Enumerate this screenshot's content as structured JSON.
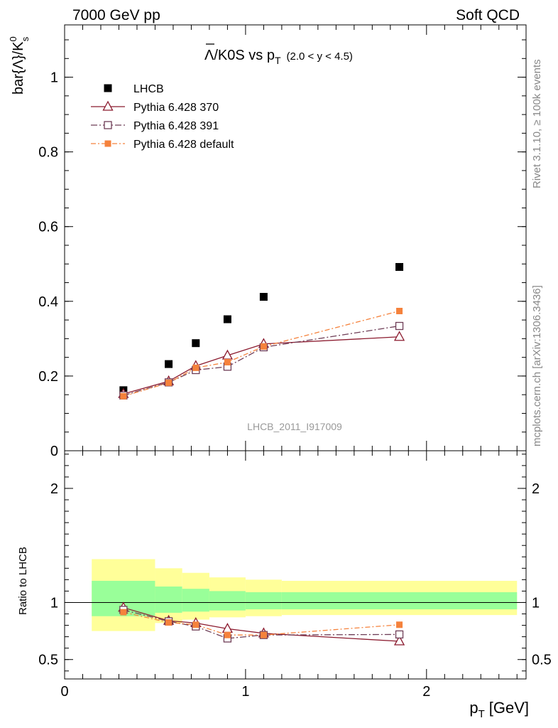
{
  "header": {
    "left_label": "7000 GeV pp",
    "right_label": "Soft QCD"
  },
  "side_labels": {
    "rivet": "Rivet 3.1.10, ≥ 100k events",
    "mcplots": "mcplots.cern.ch [arXiv:1306.3436]"
  },
  "watermark": "LHCB_2011_I917009",
  "colors": {
    "lhcb": "#000000",
    "p370": "#8b1a2e",
    "p391": "#6e3d56",
    "pdef": "#f5823c",
    "band_inner": "#99ff99",
    "band_outer": "#ffff99"
  },
  "chart_data": [
    {
      "type": "scatter",
      "panel": "main",
      "title_main": "Λ/K0S vs p",
      "title_sub": "T",
      "title_range": "(2.0 < y < 4.5)",
      "ylabel": "bar{Λ}/K",
      "ylabel_sup": "0",
      "ylabel_sub": "s",
      "xlim": [
        0,
        2.55
      ],
      "ylim": [
        0,
        1.14
      ],
      "yticks": [
        0,
        0.2,
        0.4,
        0.6,
        0.8,
        1
      ],
      "ytick_labels": [
        "0",
        "0.2",
        "0.4",
        "0.6",
        "0.8",
        "1"
      ],
      "series": [
        {
          "name": "LHCB",
          "style": "data",
          "x": [
            0.325,
            0.575,
            0.725,
            0.9,
            1.1,
            1.85
          ],
          "y": [
            0.162,
            0.232,
            0.288,
            0.352,
            0.412,
            0.492
          ]
        },
        {
          "name": "Pythia 6.428 370",
          "style": "triangle",
          "x": [
            0.325,
            0.575,
            0.725,
            0.9,
            1.1,
            1.85
          ],
          "y": [
            0.152,
            0.186,
            0.227,
            0.255,
            0.286,
            0.305
          ]
        },
        {
          "name": "Pythia 6.428 391",
          "style": "square-open",
          "x": [
            0.325,
            0.575,
            0.725,
            0.9,
            1.1,
            1.85
          ],
          "y": [
            0.148,
            0.183,
            0.216,
            0.225,
            0.277,
            0.334
          ]
        },
        {
          "name": "Pythia 6.428 default",
          "style": "square-filled",
          "x": [
            0.325,
            0.575,
            0.725,
            0.9,
            1.1,
            1.85
          ],
          "y": [
            0.146,
            0.182,
            0.222,
            0.237,
            0.279,
            0.374
          ]
        }
      ]
    },
    {
      "type": "scatter",
      "panel": "ratio",
      "ylabel": "Ratio to LHCB",
      "xlabel": "p",
      "xlabel_sub": "T",
      "xlabel_unit": "[GeV]",
      "xlim": [
        0,
        2.55
      ],
      "ylim": [
        0.33,
        2.33
      ],
      "xticks": [
        0,
        1,
        2
      ],
      "xtick_labels": [
        "0",
        "1",
        "2"
      ],
      "yticks": [
        0.5,
        1,
        2
      ],
      "ytick_labels": [
        "0.5",
        "1",
        "2"
      ],
      "bands": [
        {
          "x0": 0.15,
          "x1": 0.5,
          "outer": [
            0.75,
            1.38
          ],
          "inner": [
            0.88,
            1.19
          ]
        },
        {
          "x0": 0.5,
          "x1": 0.65,
          "outer": [
            0.82,
            1.3
          ],
          "inner": [
            0.91,
            1.14
          ]
        },
        {
          "x0": 0.65,
          "x1": 0.8,
          "outer": [
            0.85,
            1.26
          ],
          "inner": [
            0.92,
            1.12
          ]
        },
        {
          "x0": 0.8,
          "x1": 1.0,
          "outer": [
            0.87,
            1.22
          ],
          "inner": [
            0.93,
            1.1
          ]
        },
        {
          "x0": 1.0,
          "x1": 1.2,
          "outer": [
            0.88,
            1.2
          ],
          "inner": [
            0.94,
            1.09
          ]
        },
        {
          "x0": 1.2,
          "x1": 2.5,
          "outer": [
            0.89,
            1.19
          ],
          "inner": [
            0.94,
            1.09
          ]
        }
      ],
      "series": [
        {
          "name": "Pythia 6.428 370",
          "style": "triangle",
          "x": [
            0.325,
            0.575,
            0.725,
            0.9,
            1.1,
            1.85
          ],
          "y": [
            0.955,
            0.84,
            0.82,
            0.77,
            0.73,
            0.66
          ]
        },
        {
          "name": "Pythia 6.428 391",
          "style": "square-open",
          "x": [
            0.325,
            0.575,
            0.725,
            0.9,
            1.1,
            1.85
          ],
          "y": [
            0.935,
            0.835,
            0.79,
            0.685,
            0.715,
            0.72
          ]
        },
        {
          "name": "Pythia 6.428 default",
          "style": "square-filled",
          "x": [
            0.325,
            0.575,
            0.725,
            0.9,
            1.1,
            1.85
          ],
          "y": [
            0.915,
            0.825,
            0.805,
            0.715,
            0.715,
            0.805
          ]
        }
      ]
    }
  ]
}
